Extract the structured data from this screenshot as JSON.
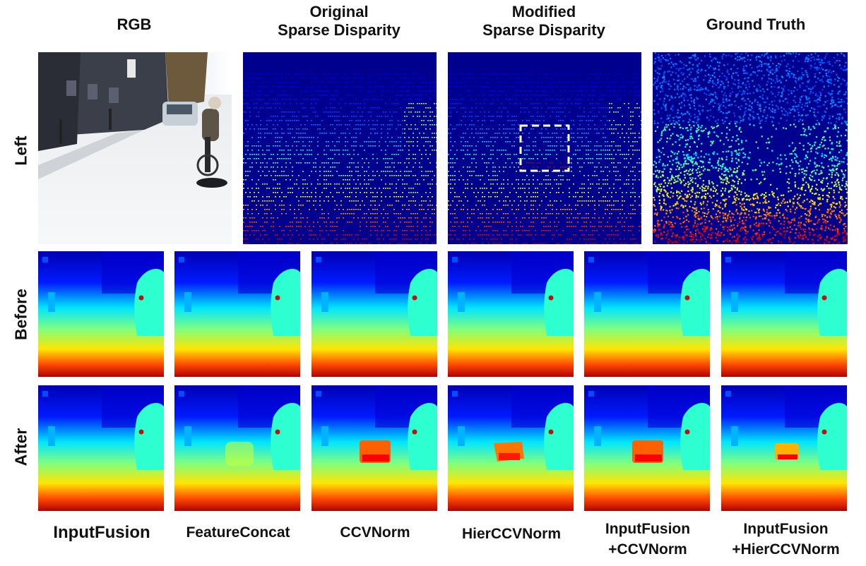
{
  "columns": {
    "rgb": "RGB",
    "original": "Original\nSparse Disparity",
    "modified": "Modified\nSparse Disparity",
    "ground_truth": "Ground Truth"
  },
  "rows": {
    "left": "Left",
    "before": "Before",
    "after": "After"
  },
  "methods": [
    "InputFusion",
    "FeatureConcat",
    "CCVNorm",
    "HierCCVNorm",
    "InputFusion\n+CCVNorm",
    "InputFusion\n+HierCCVNorm"
  ],
  "colors": {
    "disparity_far": "#00008f",
    "disparity_near": "#e00000",
    "box_outline": "#ffffff"
  }
}
